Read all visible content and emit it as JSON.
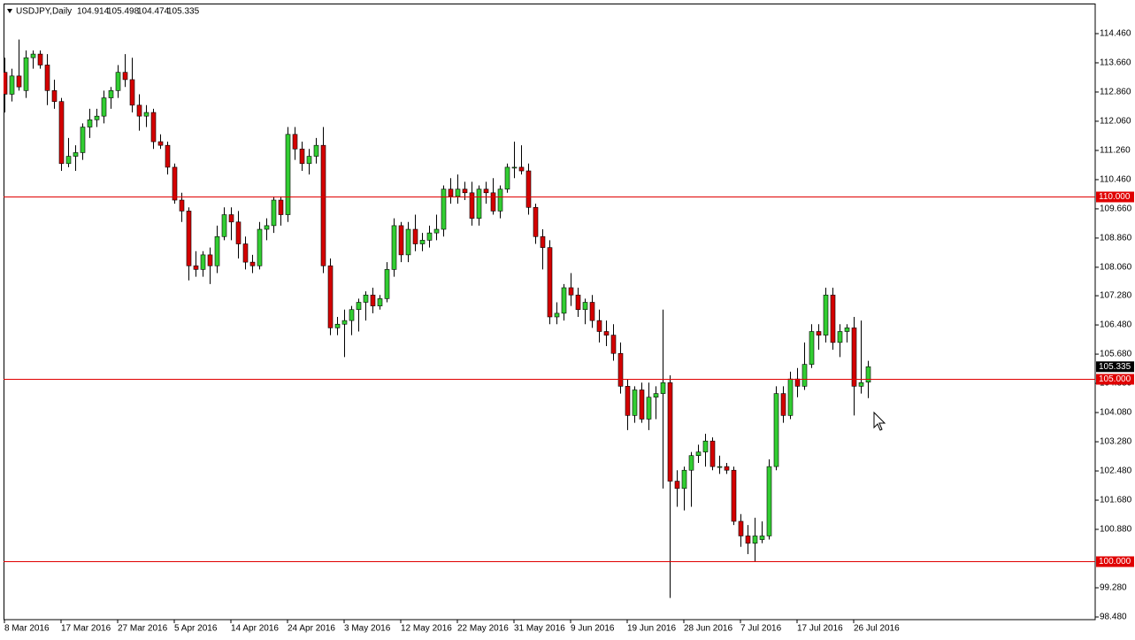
{
  "chart_data": {
    "type": "candlestick",
    "title": "USDJPY,Daily",
    "categories": [
      "8 Mar 2016",
      null,
      null,
      null,
      null,
      null,
      null,
      null,
      "17 Mar 2016",
      null,
      null,
      null,
      null,
      null,
      null,
      null,
      "27 Mar 2016",
      null,
      null,
      null,
      null,
      null,
      null,
      null,
      "5 Apr 2016",
      null,
      null,
      null,
      null,
      null,
      null,
      null,
      "14 Apr 2016",
      null,
      null,
      null,
      null,
      null,
      null,
      null,
      "24 Apr 2016",
      null,
      null,
      null,
      null,
      null,
      null,
      null,
      "3 May 2016",
      null,
      null,
      null,
      null,
      null,
      null,
      null,
      "12 May 2016",
      null,
      null,
      null,
      null,
      null,
      null,
      null,
      "22 May 2016",
      null,
      null,
      null,
      null,
      null,
      null,
      null,
      "31 May 2016",
      null,
      null,
      null,
      null,
      null,
      null,
      null,
      "9 Jun 2016",
      null,
      null,
      null,
      null,
      null,
      null,
      null,
      "19 Jun 2016",
      null,
      null,
      null,
      null,
      null,
      null,
      null,
      "28 Jun 2016",
      null,
      null,
      null,
      null,
      null,
      null,
      null,
      "7 Jul 2016",
      null,
      null,
      null,
      null,
      null,
      null,
      null,
      "17 Jul 2016",
      null,
      null,
      null,
      null,
      null,
      null,
      null,
      "26 Jul 2016",
      null,
      null
    ],
    "open": [
      113.4,
      112.8,
      113.3,
      112.9,
      113.8,
      113.9,
      113.6,
      112.9,
      112.6,
      110.9,
      111.1,
      111.2,
      111.9,
      112.1,
      112.2,
      112.7,
      112.9,
      113.4,
      113.2,
      112.5,
      112.2,
      112.3,
      111.5,
      111.4,
      110.8,
      109.9,
      109.6,
      108.1,
      108.0,
      108.4,
      108.1,
      108.9,
      109.5,
      109.3,
      108.7,
      108.2,
      108.1,
      109.1,
      109.2,
      109.9,
      109.5,
      111.7,
      111.3,
      110.9,
      111.1,
      111.4,
      108.1,
      106.4,
      106.5,
      106.6,
      106.9,
      107.1,
      107.3,
      107.0,
      107.2,
      108.0,
      109.2,
      108.4,
      109.1,
      108.7,
      108.8,
      109.0,
      109.1,
      110.2,
      110.0,
      110.2,
      110.1,
      109.4,
      110.2,
      110.1,
      109.6,
      110.2,
      110.8,
      110.8,
      110.7,
      109.7,
      108.9,
      108.6,
      106.7,
      106.8,
      107.5,
      107.3,
      106.9,
      107.1,
      106.6,
      106.3,
      106.2,
      105.7,
      104.8,
      104.0,
      104.7,
      103.9,
      104.5,
      104.6,
      104.9,
      102.2,
      102.0,
      102.5,
      102.9,
      103.0,
      103.3,
      102.6,
      102.6,
      102.5,
      101.1,
      100.7,
      100.5,
      100.6,
      100.7,
      102.6,
      104.6,
      104.0,
      105.0,
      104.8,
      105.4,
      106.3,
      106.2,
      107.3,
      106.0,
      106.3,
      106.4,
      104.8,
      104.914
    ],
    "high": [
      113.8,
      113.5,
      114.3,
      114.0,
      114.0,
      114.0,
      113.9,
      113.2,
      112.7,
      111.6,
      111.4,
      112.0,
      112.4,
      112.4,
      112.9,
      113.0,
      113.6,
      113.9,
      113.8,
      112.8,
      112.5,
      112.4,
      111.7,
      111.5,
      110.9,
      110.1,
      109.7,
      108.5,
      108.5,
      108.6,
      109.2,
      109.7,
      109.7,
      109.6,
      108.9,
      108.4,
      109.3,
      109.4,
      110.0,
      110.0,
      111.9,
      111.9,
      111.5,
      111.3,
      111.6,
      111.9,
      108.3,
      106.7,
      106.9,
      107.0,
      107.2,
      107.4,
      107.5,
      107.3,
      108.2,
      109.4,
      109.3,
      109.3,
      109.5,
      109.0,
      109.2,
      109.5,
      110.3,
      110.5,
      110.6,
      110.4,
      110.4,
      110.3,
      110.4,
      110.5,
      110.3,
      110.9,
      111.5,
      111.4,
      110.9,
      109.8,
      109.1,
      108.8,
      107.1,
      107.6,
      107.9,
      107.5,
      107.2,
      107.3,
      106.9,
      106.6,
      106.5,
      106.0,
      105.0,
      104.8,
      104.9,
      104.9,
      104.8,
      106.9,
      105.1,
      102.5,
      102.6,
      103.0,
      103.2,
      103.5,
      103.4,
      102.9,
      102.7,
      102.6,
      101.3,
      101.0,
      101.2,
      101.1,
      102.8,
      104.8,
      104.8,
      105.2,
      105.3,
      106.0,
      106.5,
      106.5,
      107.5,
      107.5,
      106.5,
      106.5,
      106.7,
      106.6,
      105.498
    ],
    "low": [
      112.3,
      112.6,
      112.9,
      112.7,
      113.5,
      113.5,
      112.5,
      112.4,
      110.7,
      110.8,
      110.7,
      111.0,
      111.6,
      111.9,
      112.0,
      112.4,
      112.7,
      113.0,
      112.3,
      111.8,
      111.9,
      111.3,
      111.3,
      110.6,
      109.8,
      109.3,
      107.7,
      107.8,
      107.8,
      107.6,
      107.9,
      108.8,
      108.8,
      108.3,
      108.0,
      107.9,
      108.0,
      108.8,
      109.0,
      109.2,
      109.3,
      111.0,
      110.7,
      110.6,
      110.9,
      107.9,
      106.2,
      106.2,
      105.6,
      106.2,
      106.3,
      106.6,
      106.8,
      106.9,
      107.1,
      107.8,
      108.2,
      108.2,
      108.5,
      108.5,
      108.6,
      108.8,
      108.9,
      109.8,
      109.8,
      109.9,
      109.2,
      109.2,
      109.8,
      109.5,
      109.4,
      110.1,
      110.5,
      110.6,
      109.5,
      108.7,
      108.0,
      106.5,
      106.5,
      106.6,
      107.0,
      106.7,
      106.5,
      106.4,
      106.0,
      105.9,
      105.5,
      104.6,
      103.6,
      103.8,
      103.8,
      103.6,
      103.9,
      102.0,
      99.0,
      101.5,
      101.4,
      101.5,
      102.7,
      102.6,
      102.5,
      102.4,
      102.4,
      101.0,
      100.4,
      100.2,
      100.0,
      100.5,
      100.6,
      102.5,
      103.8,
      103.9,
      104.5,
      104.7,
      105.3,
      105.8,
      106.0,
      105.8,
      105.6,
      106.0,
      104.0,
      104.6,
      104.474
    ],
    "close": [
      112.8,
      113.3,
      113.0,
      113.8,
      113.9,
      113.6,
      112.9,
      112.6,
      110.9,
      111.1,
      111.2,
      111.9,
      112.1,
      112.2,
      112.7,
      112.9,
      113.4,
      113.2,
      112.5,
      112.2,
      112.3,
      111.5,
      111.4,
      110.8,
      109.9,
      109.6,
      108.1,
      108.0,
      108.4,
      108.1,
      108.9,
      109.5,
      109.3,
      108.7,
      108.2,
      108.1,
      109.1,
      109.2,
      109.9,
      109.5,
      111.7,
      111.3,
      110.9,
      111.1,
      111.4,
      108.1,
      106.4,
      106.5,
      106.6,
      106.9,
      107.1,
      107.3,
      107.0,
      107.2,
      108.0,
      109.2,
      108.4,
      109.1,
      108.7,
      108.8,
      109.0,
      109.1,
      110.2,
      110.0,
      110.2,
      110.1,
      109.4,
      110.2,
      110.1,
      109.6,
      110.2,
      110.8,
      110.8,
      110.7,
      109.7,
      108.9,
      108.6,
      106.7,
      106.8,
      107.5,
      107.3,
      106.9,
      107.1,
      106.6,
      106.3,
      106.2,
      105.7,
      104.8,
      104.0,
      104.7,
      103.9,
      104.5,
      104.6,
      104.9,
      102.2,
      102.0,
      102.5,
      102.9,
      103.0,
      103.3,
      102.6,
      102.6,
      102.5,
      101.1,
      100.7,
      100.5,
      100.7,
      100.7,
      102.6,
      104.6,
      104.0,
      105.0,
      104.8,
      105.4,
      106.3,
      106.2,
      107.3,
      106.0,
      106.3,
      106.4,
      104.8,
      104.9,
      105.335
    ],
    "up_color": "#32cd32",
    "down_color": "#d40000",
    "ylim": [
      98.407,
      115.284
    ],
    "yticks": [
      {
        "value": 114.46,
        "label": "114.460"
      },
      {
        "value": 113.66,
        "label": "113.660"
      },
      {
        "value": 112.86,
        "label": "112.860"
      },
      {
        "value": 112.06,
        "label": "112.060"
      },
      {
        "value": 111.26,
        "label": "111.260"
      },
      {
        "value": 110.46,
        "label": "110.460"
      },
      {
        "value": 109.66,
        "label": "109.660"
      },
      {
        "value": 108.86,
        "label": "108.860"
      },
      {
        "value": 108.06,
        "label": "108.060"
      },
      {
        "value": 107.28,
        "label": "107.280"
      },
      {
        "value": 106.48,
        "label": "106.480"
      },
      {
        "value": 105.68,
        "label": "105.680"
      },
      {
        "value": 104.88,
        "label": "104.880"
      },
      {
        "value": 104.08,
        "label": "104.080"
      },
      {
        "value": 103.28,
        "label": "103.280"
      },
      {
        "value": 102.48,
        "label": "102.480"
      },
      {
        "value": 101.68,
        "label": "101.680"
      },
      {
        "value": 100.88,
        "label": "100.880"
      },
      {
        "value": 99.28,
        "label": "99.280"
      },
      {
        "value": 98.48,
        "label": "98.480"
      }
    ],
    "levels": [
      {
        "value": 110,
        "label": "110.000"
      },
      {
        "value": 105,
        "label": "105.000"
      },
      {
        "value": 100,
        "label": "100.000"
      }
    ],
    "level_color": "#e00000",
    "grid": false
  }
}
